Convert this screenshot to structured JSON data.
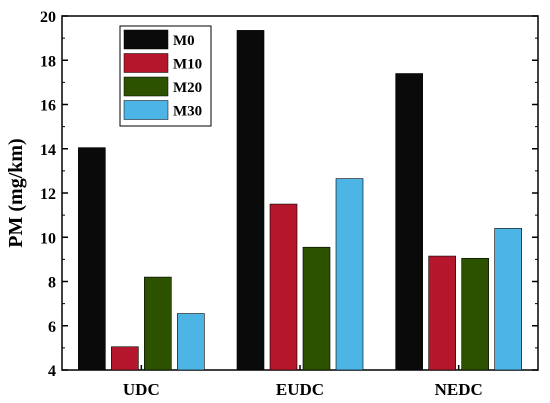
{
  "chart_data": {
    "type": "bar",
    "title": "",
    "xlabel": "",
    "ylabel": "PM (mg/km)",
    "categories": [
      "UDC",
      "EUDC",
      "NEDC"
    ],
    "series": [
      {
        "name": "M0",
        "color": "#0a0a0a",
        "values": [
          14.05,
          19.35,
          17.4
        ]
      },
      {
        "name": "M10",
        "color": "#b5162b",
        "values": [
          5.05,
          11.5,
          9.15
        ]
      },
      {
        "name": "M20",
        "color": "#2c5200",
        "values": [
          8.2,
          9.55,
          9.05
        ]
      },
      {
        "name": "M30",
        "color": "#4cb5e6",
        "values": [
          6.55,
          12.65,
          10.4
        ]
      }
    ],
    "ylim": [
      4,
      20
    ],
    "yticks": [
      4,
      6,
      8,
      10,
      12,
      14,
      16,
      18,
      20
    ],
    "grid": false,
    "legend_position": "top-left-inside"
  }
}
